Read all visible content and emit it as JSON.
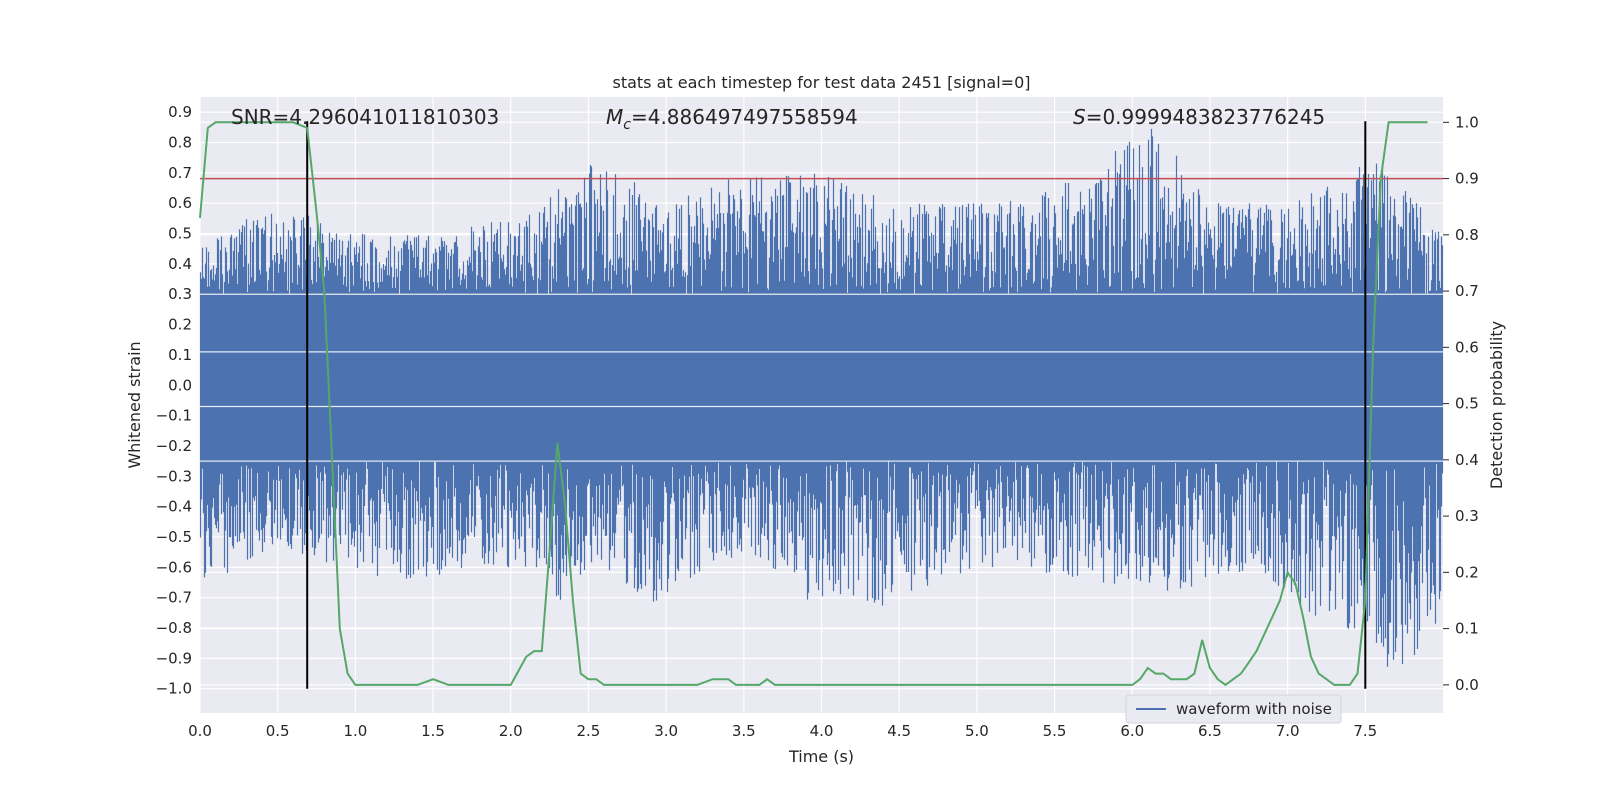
{
  "chart_data": {
    "type": "line",
    "title": "stats at each timestep for test data 2451 [signal=0]",
    "xlabel": "Time (s)",
    "ylabel_left": "Whitened strain",
    "ylabel_right": "Detection probability",
    "xlim": [
      0.0,
      8.0
    ],
    "ylim_left": [
      -1.08,
      0.95
    ],
    "ylim_right": [
      -0.05,
      1.045
    ],
    "x_ticks": [
      "0.0",
      "0.5",
      "1.0",
      "1.5",
      "2.0",
      "2.5",
      "3.0",
      "3.5",
      "4.0",
      "4.5",
      "5.0",
      "5.5",
      "6.0",
      "6.5",
      "7.0",
      "7.5"
    ],
    "y_ticks_left": [
      "0.9",
      "0.8",
      "0.7",
      "0.6",
      "0.5",
      "0.4",
      "0.3",
      "0.2",
      "0.1",
      "0.0",
      "−0.1",
      "−0.2",
      "−0.3",
      "−0.4",
      "−0.5",
      "−0.6",
      "−0.7",
      "−0.8",
      "−0.9",
      "−1.0"
    ],
    "y_ticks_right": [
      "1.0",
      "0.9",
      "0.8",
      "0.7",
      "0.6",
      "0.5",
      "0.4",
      "0.3",
      "0.2",
      "0.1",
      "0.0"
    ],
    "grid": true,
    "annotations": {
      "snr": "SNR=4.296041011810303",
      "mc_symbol": "M",
      "mc_sub": "c",
      "mc_value": "=4.886497497558594",
      "s_symbol": "S",
      "s_value": "=0.9999483823776245"
    },
    "legend": {
      "label": "waveform with noise",
      "placement": "lower-right"
    },
    "colors": {
      "waveform": "#4c72b0",
      "probability": "#55a868",
      "threshold": "#c44e52",
      "markers": "#000000",
      "background": "#eaeaf2",
      "grid": "#ffffff"
    },
    "threshold": 0.9,
    "vertical_markers": [
      0.69,
      7.5
    ],
    "vertical_marker_range": [
      -1.0,
      0.87
    ],
    "series": [
      {
        "name": "waveform with noise",
        "axis": "left",
        "envelope_top": [
          [
            0.0,
            0.45
          ],
          [
            0.3,
            0.55
          ],
          [
            0.6,
            0.6
          ],
          [
            0.9,
            0.5
          ],
          [
            1.5,
            0.5
          ],
          [
            2.0,
            0.55
          ],
          [
            2.6,
            0.76
          ],
          [
            3.0,
            0.6
          ],
          [
            3.4,
            0.68
          ],
          [
            3.9,
            0.72
          ],
          [
            4.5,
            0.6
          ],
          [
            5.0,
            0.6
          ],
          [
            5.6,
            0.68
          ],
          [
            6.15,
            0.86
          ],
          [
            6.5,
            0.6
          ],
          [
            7.0,
            0.6
          ],
          [
            7.3,
            0.7
          ],
          [
            7.6,
            0.75
          ],
          [
            8.0,
            0.5
          ]
        ],
        "envelope_bottom": [
          [
            0.0,
            -0.66
          ],
          [
            0.3,
            -0.6
          ],
          [
            0.6,
            -0.55
          ],
          [
            0.9,
            -0.6
          ],
          [
            1.3,
            -0.65
          ],
          [
            1.8,
            -0.6
          ],
          [
            2.2,
            -0.6
          ],
          [
            2.3,
            -0.74
          ],
          [
            2.6,
            -0.6
          ],
          [
            2.9,
            -0.72
          ],
          [
            3.5,
            -0.55
          ],
          [
            3.9,
            -0.71
          ],
          [
            4.4,
            -0.73
          ],
          [
            5.0,
            -0.6
          ],
          [
            5.6,
            -0.65
          ],
          [
            6.2,
            -0.7
          ],
          [
            6.8,
            -0.6
          ],
          [
            7.2,
            -0.78
          ],
          [
            7.5,
            -0.82
          ],
          [
            7.65,
            -1.0
          ],
          [
            8.0,
            -0.78
          ]
        ]
      },
      {
        "name": "Detection probability",
        "axis": "right",
        "x": [
          0.0,
          0.05,
          0.1,
          0.2,
          0.3,
          0.4,
          0.5,
          0.6,
          0.69,
          0.75,
          0.8,
          0.85,
          0.9,
          0.95,
          1.0,
          1.1,
          1.2,
          1.3,
          1.4,
          1.5,
          1.6,
          1.7,
          1.8,
          1.9,
          2.0,
          2.1,
          2.15,
          2.2,
          2.25,
          2.3,
          2.35,
          2.4,
          2.45,
          2.5,
          2.55,
          2.6,
          2.7,
          2.8,
          2.9,
          3.0,
          3.1,
          3.2,
          3.3,
          3.35,
          3.4,
          3.45,
          3.5,
          3.6,
          3.65,
          3.7,
          3.8,
          3.9,
          4.0,
          4.2,
          4.4,
          4.6,
          4.8,
          5.0,
          5.2,
          5.4,
          5.6,
          5.8,
          6.0,
          6.05,
          6.1,
          6.15,
          6.2,
          6.25,
          6.3,
          6.35,
          6.4,
          6.45,
          6.5,
          6.55,
          6.6,
          6.65,
          6.7,
          6.75,
          6.8,
          6.85,
          6.9,
          6.95,
          7.0,
          7.05,
          7.1,
          7.15,
          7.2,
          7.25,
          7.3,
          7.35,
          7.4,
          7.45,
          7.5,
          7.55,
          7.6,
          7.65,
          7.7,
          7.8,
          7.9
        ],
        "values": [
          0.83,
          0.99,
          1.0,
          1.0,
          1.0,
          1.0,
          1.0,
          1.0,
          0.99,
          0.84,
          0.7,
          0.4,
          0.1,
          0.02,
          0.0,
          0.0,
          0.0,
          0.0,
          0.0,
          0.01,
          0.0,
          0.0,
          0.0,
          0.0,
          0.0,
          0.05,
          0.06,
          0.06,
          0.24,
          0.43,
          0.32,
          0.15,
          0.02,
          0.01,
          0.01,
          0.0,
          0.0,
          0.0,
          0.0,
          0.0,
          0.0,
          0.0,
          0.01,
          0.01,
          0.01,
          0.0,
          0.0,
          0.0,
          0.01,
          0.0,
          0.0,
          0.0,
          0.0,
          0.0,
          0.0,
          0.0,
          0.0,
          0.0,
          0.0,
          0.0,
          0.0,
          0.0,
          0.0,
          0.01,
          0.03,
          0.02,
          0.02,
          0.01,
          0.01,
          0.01,
          0.02,
          0.08,
          0.03,
          0.01,
          0.0,
          0.01,
          0.02,
          0.04,
          0.06,
          0.09,
          0.12,
          0.15,
          0.2,
          0.18,
          0.12,
          0.05,
          0.02,
          0.01,
          0.0,
          0.0,
          0.0,
          0.02,
          0.15,
          0.6,
          0.9,
          1.0,
          1.0,
          1.0,
          1.0
        ]
      }
    ]
  }
}
